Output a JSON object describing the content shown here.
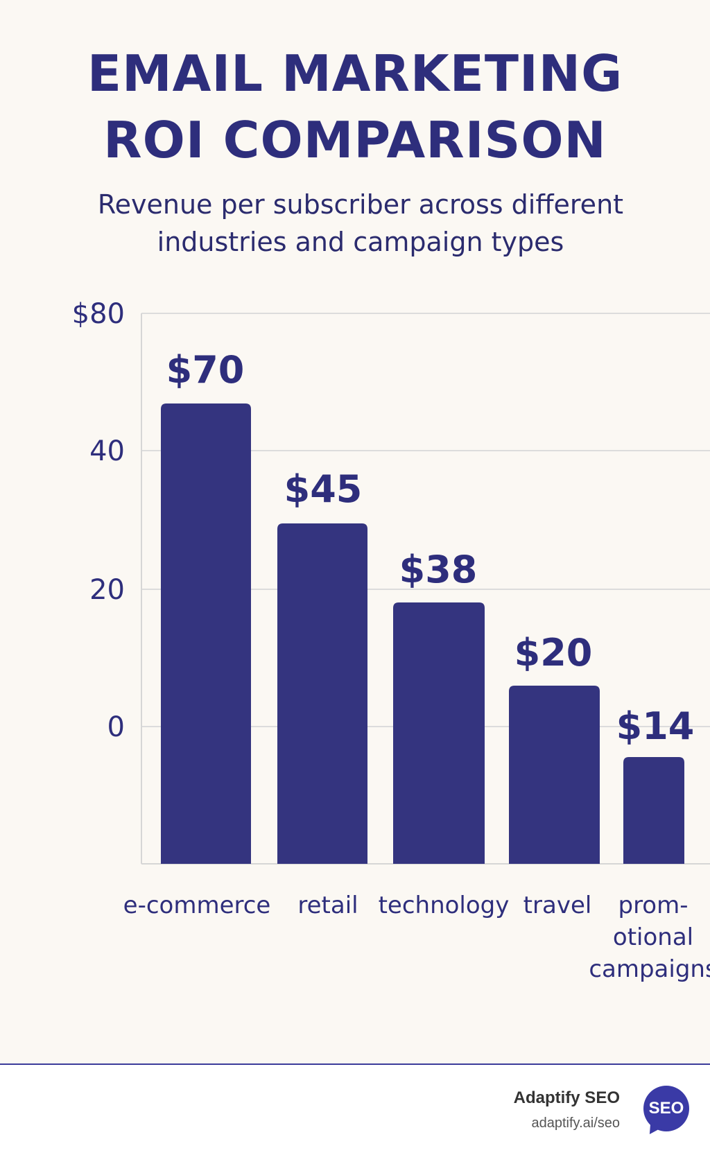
{
  "header": {
    "title_line1": "EMAIL MARKETING",
    "title_line2": "ROI COMPARISON",
    "subtitle": "Revenue per subscriber across different industries and campaign types"
  },
  "chart_data": {
    "type": "bar",
    "categories": [
      "e-commerce",
      "retail",
      "technology",
      "travel",
      "promotional campaigns"
    ],
    "category_label_lines": [
      [
        "e-commerce"
      ],
      [
        "retail"
      ],
      [
        "technology"
      ],
      [
        "travel"
      ],
      [
        "prom-",
        "otional",
        "campaigns"
      ]
    ],
    "values": [
      70,
      45,
      38,
      20,
      14
    ],
    "data_labels": [
      "$70",
      "$45",
      "$38",
      "$20",
      "$14"
    ],
    "y_ticks": [
      {
        "value": 80,
        "label": "$80"
      },
      {
        "value": 40,
        "label": "40"
      },
      {
        "value": 20,
        "label": "20"
      },
      {
        "value": 0,
        "label": "0"
      }
    ],
    "bar_color": "#34347f",
    "grid": true,
    "legend": "none"
  },
  "footer": {
    "brand_name": "Adaptify SEO",
    "brand_url": "adaptify.ai/seo",
    "badge_text": "SEO",
    "badge_color": "#3a3aa6"
  }
}
